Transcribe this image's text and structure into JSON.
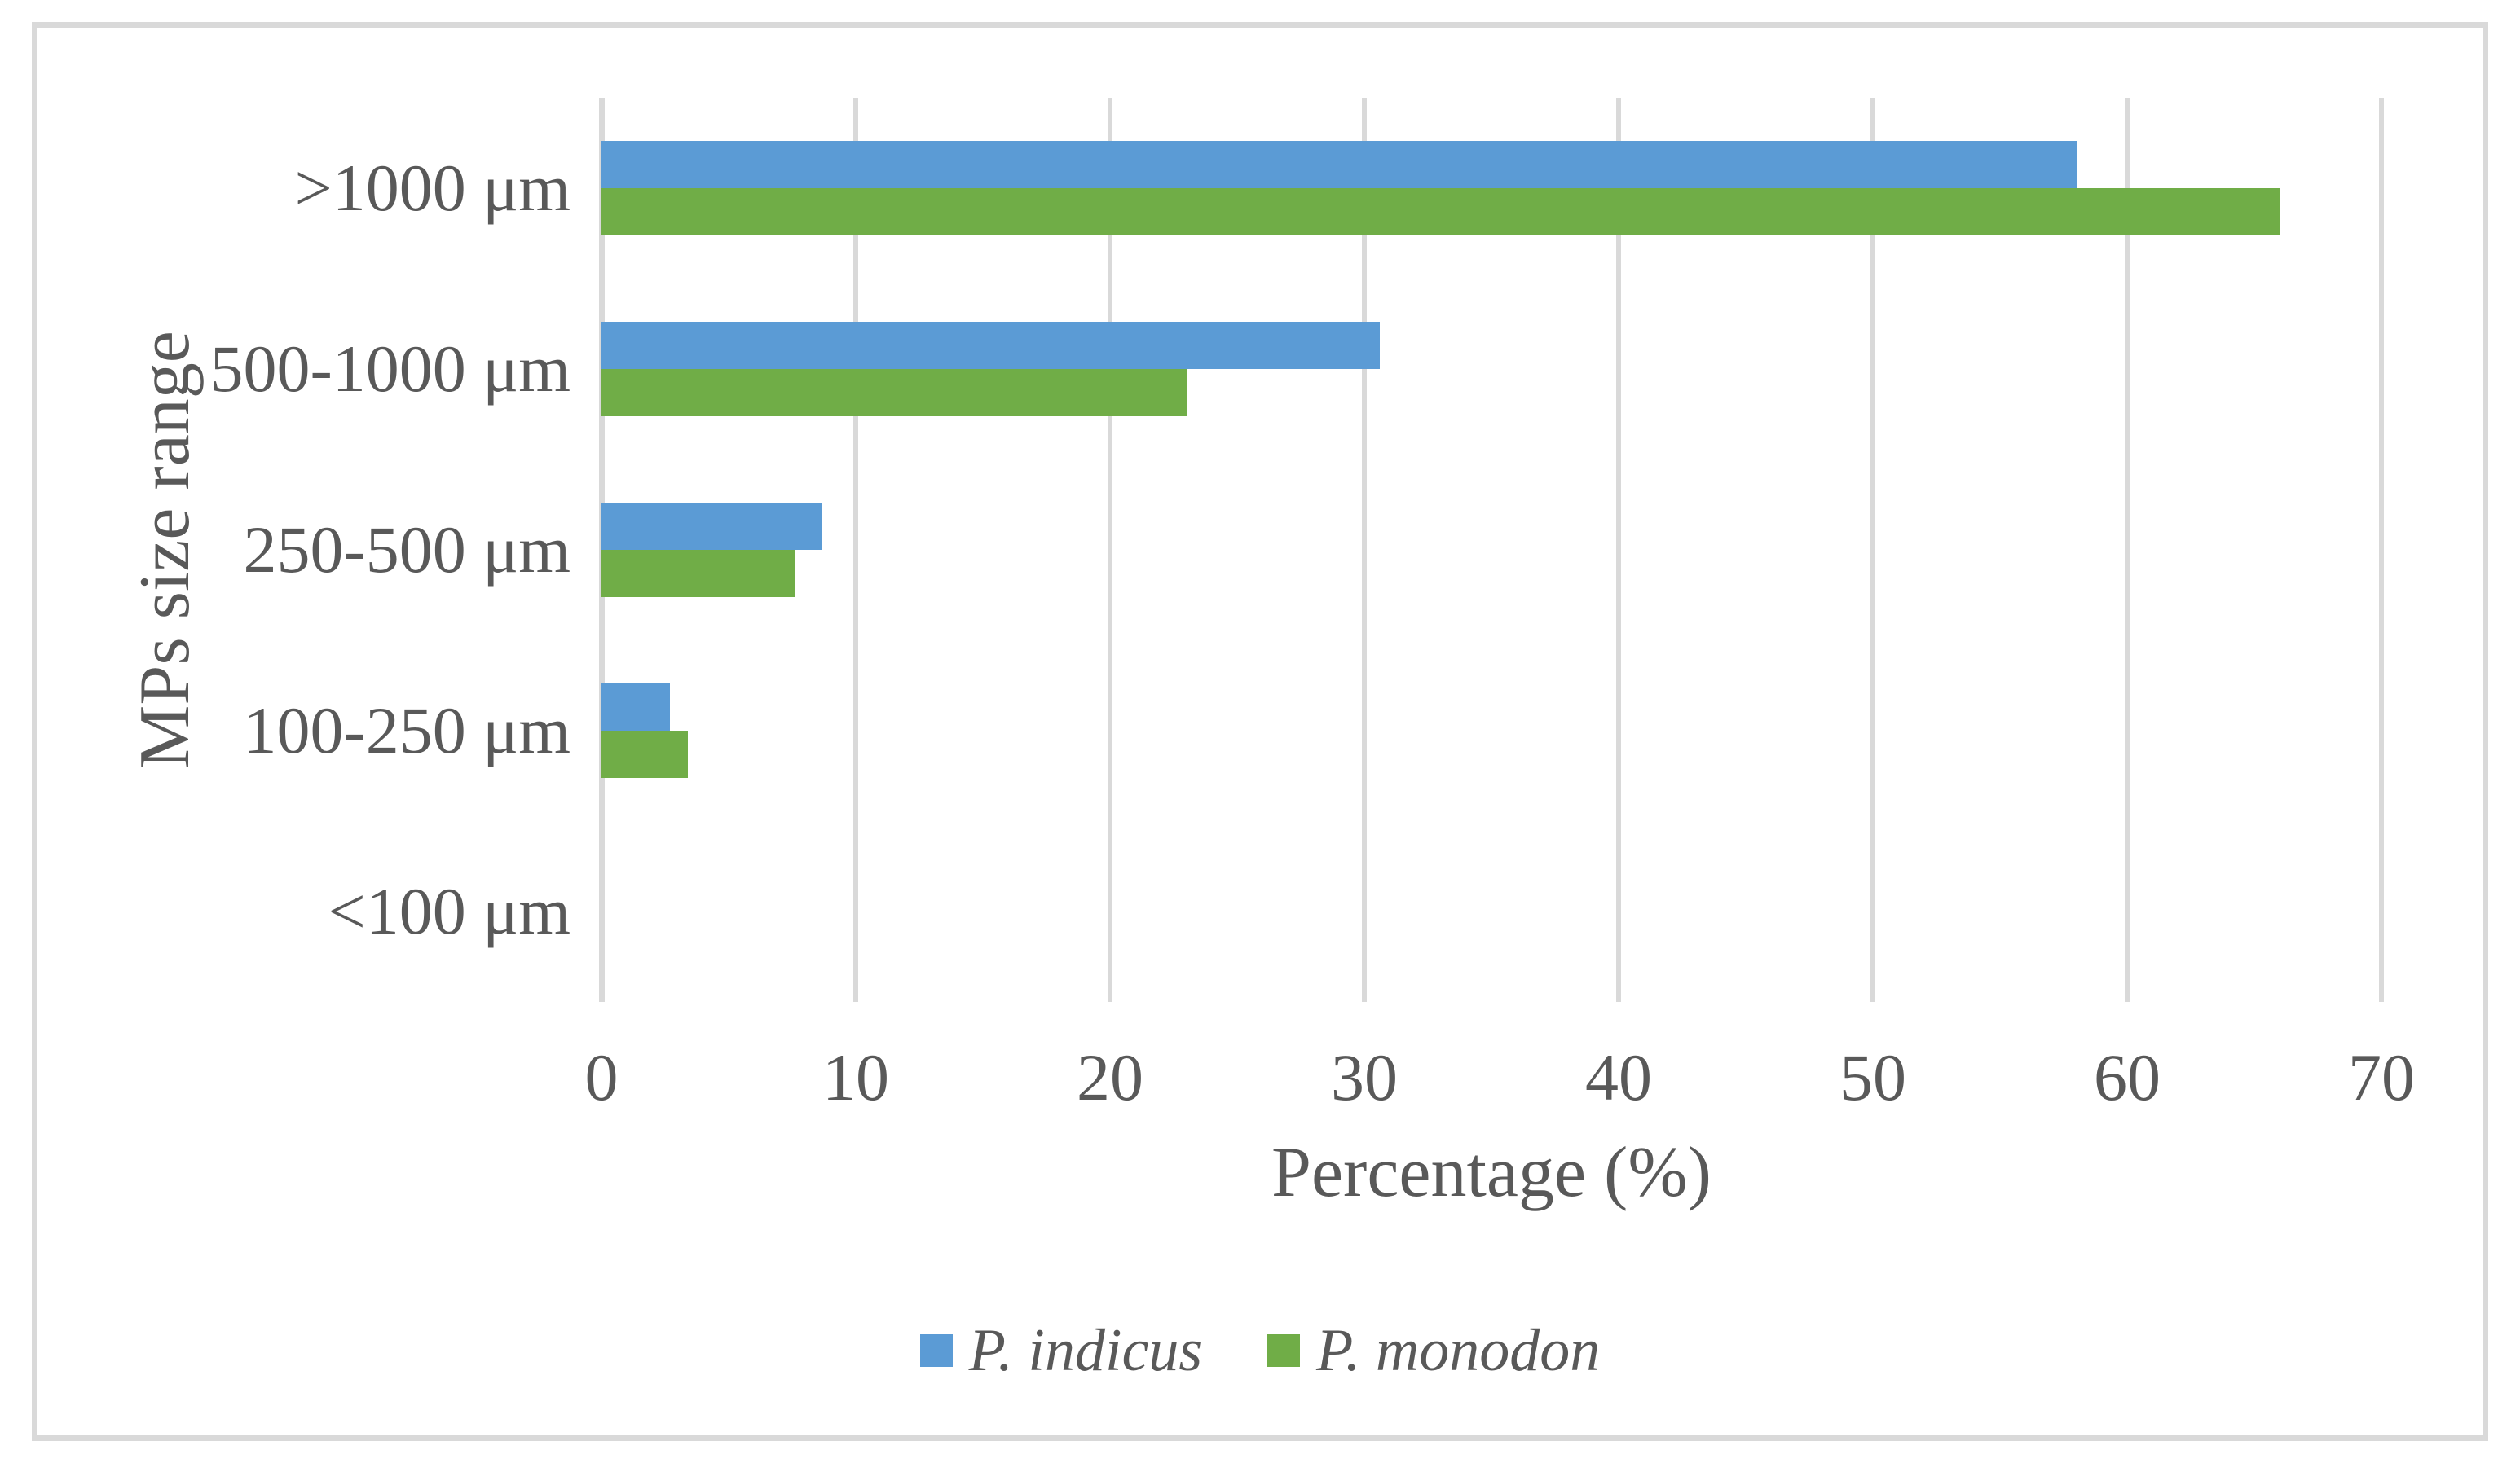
{
  "chart_data": {
    "type": "bar",
    "orientation": "horizontal",
    "title": "",
    "categories": [
      ">1000 μm",
      "500-1000 μm",
      "250-500 μm",
      "100-250 μm",
      "<100 μm"
    ],
    "series": [
      {
        "name": "P. indicus",
        "color": "#5b9bd5",
        "values": [
          58,
          30.6,
          8.7,
          2.7,
          0
        ]
      },
      {
        "name": "P. monodon",
        "color": "#70ad47",
        "values": [
          66,
          23,
          7.6,
          3.4,
          0
        ]
      }
    ],
    "xlabel": "Percentage (%)",
    "ylabel": "MPs size range",
    "xlim": [
      0,
      70
    ],
    "xticks": [
      0,
      10,
      20,
      30,
      40,
      50,
      60,
      70
    ],
    "grid": "vertical-only",
    "legend_position": "bottom-center",
    "colors": {
      "text": "#595959",
      "gridline": "#d9d9d9",
      "axis_line": "#d9d9d9",
      "frame_border": "#d9d9d9",
      "background": "#ffffff"
    }
  }
}
